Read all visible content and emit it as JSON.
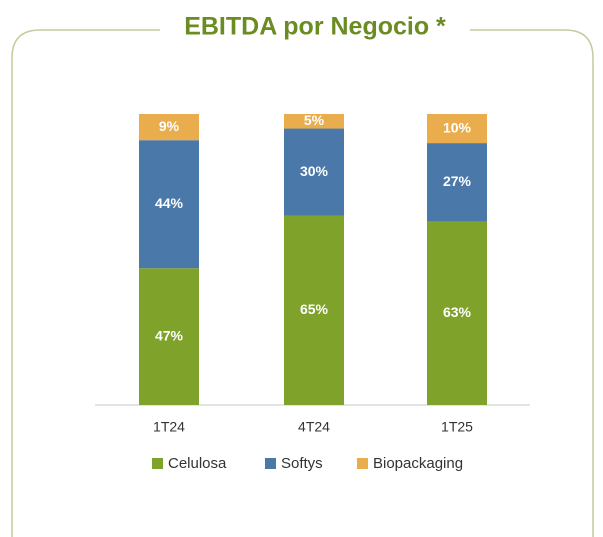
{
  "chart_data": {
    "type": "stacked_bar",
    "title": "EBITDA por Negocio *",
    "categories": [
      "1T24",
      "4T24",
      "1T25"
    ],
    "series": [
      {
        "name": "Celulosa",
        "color": "#7fa22a",
        "values": [
          47,
          65,
          63
        ],
        "value_labels": [
          "47%",
          "65%",
          "63%"
        ]
      },
      {
        "name": "Softys",
        "color": "#4a78a8",
        "values": [
          44,
          30,
          27
        ],
        "value_labels": [
          "44%",
          "30%",
          "27%"
        ]
      },
      {
        "name": "Biopackaging",
        "color": "#e9ad4e",
        "values": [
          9,
          5,
          10
        ],
        "value_labels": [
          "9%",
          "5%",
          "10%"
        ]
      }
    ]
  }
}
